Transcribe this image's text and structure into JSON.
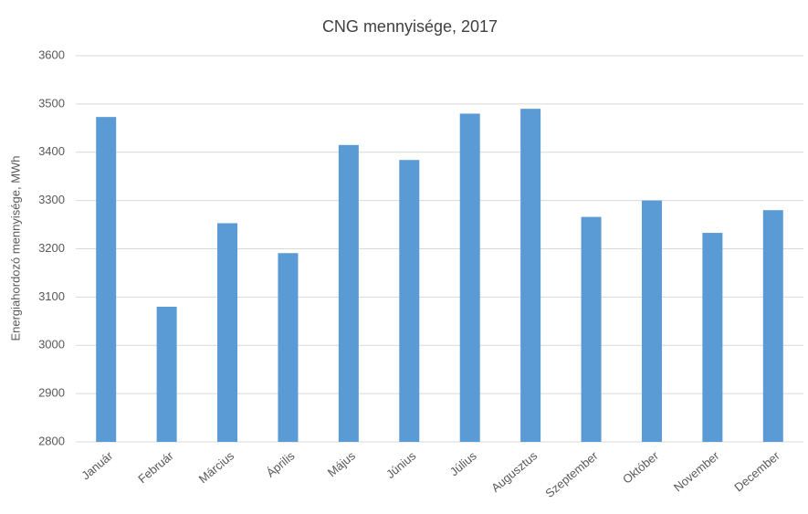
{
  "chart_data": {
    "type": "bar",
    "title": "CNG mennyisége, 2017",
    "y_label": "Energiahordozó mennyisége, MWh",
    "categories": [
      "Január",
      "Február",
      "Március",
      "Április",
      "Május",
      "Június",
      "Július",
      "Augusztus",
      "Szeptember",
      "Október",
      "November",
      "December"
    ],
    "values": [
      3473,
      3080,
      3253,
      3191,
      3415,
      3384,
      3480,
      3490,
      3266,
      3300,
      3233,
      3280
    ],
    "color": "#5b9bd5",
    "ylim": [
      2800,
      3600
    ],
    "yticks": [
      2800,
      2900,
      3000,
      3100,
      3200,
      3300,
      3400,
      3500,
      3600
    ],
    "grid": true
  }
}
